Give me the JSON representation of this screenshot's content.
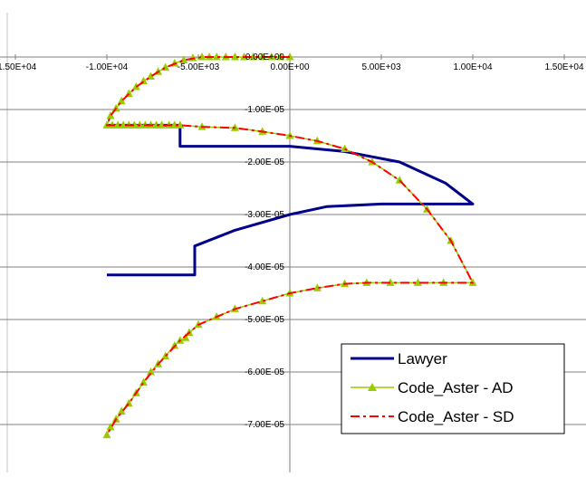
{
  "chart_data": {
    "type": "line",
    "title": "",
    "xlabel": "",
    "ylabel": "",
    "xlim": [
      -15000,
      15000
    ],
    "ylim": [
      -7.6e-05,
      1e-06
    ],
    "x_ticks": [
      {
        "value": -15000,
        "label": "-1.50E+04"
      },
      {
        "value": -10000,
        "label": "-1.00E+04"
      },
      {
        "value": -5000,
        "label": "-5.00E+03"
      },
      {
        "value": 0,
        "label": "0.00E+00"
      },
      {
        "value": 5000,
        "label": "5.00E+03"
      },
      {
        "value": 10000,
        "label": "1.00E+04"
      },
      {
        "value": 15000,
        "label": "1.50E+04"
      }
    ],
    "y_ticks": [
      {
        "value": 0,
        "label": "0.00E+00"
      },
      {
        "value": -1e-05,
        "label": "-1.00E-05"
      },
      {
        "value": -2e-05,
        "label": "-2.00E-05"
      },
      {
        "value": -3e-05,
        "label": "-3.00E-05"
      },
      {
        "value": -4e-05,
        "label": "-4.00E-05"
      },
      {
        "value": -5e-05,
        "label": "-5.00E-05"
      },
      {
        "value": -6e-05,
        "label": "-6.00E-05"
      },
      {
        "value": -7e-05,
        "label": "-7.00E-05"
      }
    ],
    "grid": "horizontal",
    "legend_position": "bottom-right",
    "series": [
      {
        "name": "Lawyer",
        "color": "#00008b",
        "style": "solid",
        "marker": "none",
        "points": [
          [
            -10000,
            -1.3e-05
          ],
          [
            -6000,
            -1.3e-05
          ],
          [
            -6000,
            -1.7e-05
          ],
          [
            0,
            -1.7e-05
          ],
          [
            3000,
            -1.8e-05
          ],
          [
            6000,
            -2e-05
          ],
          [
            8500,
            -2.4e-05
          ],
          [
            10000,
            -2.8e-05
          ],
          [
            5000,
            -2.8e-05
          ],
          [
            2000,
            -2.85e-05
          ],
          [
            0,
            -3e-05
          ],
          [
            -3000,
            -3.3e-05
          ],
          [
            -5200,
            -3.6e-05
          ],
          [
            -5200,
            -3.8e-05
          ],
          [
            -5200,
            -4.15e-05
          ],
          [
            -10000,
            -4.15e-05
          ]
        ]
      },
      {
        "name": "Code_Aster - AD",
        "color": "#99cc00",
        "style": "solid",
        "marker": "triangle",
        "points": [
          [
            0,
            0
          ],
          [
            -500,
            0
          ],
          [
            -1000,
            0
          ],
          [
            -1500,
            0
          ],
          [
            -2000,
            0
          ],
          [
            -2500,
            0
          ],
          [
            -3000,
            0
          ],
          [
            -3500,
            0
          ],
          [
            -4000,
            0
          ],
          [
            -4400,
            0
          ],
          [
            -4800,
            0
          ],
          [
            -5300,
            -2e-07
          ],
          [
            -5800,
            -6e-07
          ],
          [
            -6300,
            -1.2e-06
          ],
          [
            -6800,
            -2e-06
          ],
          [
            -7200,
            -2.8e-06
          ],
          [
            -7600,
            -3.7e-06
          ],
          [
            -8000,
            -4.6e-06
          ],
          [
            -8400,
            -5.7e-06
          ],
          [
            -8800,
            -7e-06
          ],
          [
            -9200,
            -8.4e-06
          ],
          [
            -9500,
            -9.8e-06
          ],
          [
            -9800,
            -1.12e-05
          ],
          [
            -10000,
            -1.3e-05
          ],
          [
            -9700,
            -1.3e-05
          ],
          [
            -9400,
            -1.3e-05
          ],
          [
            -9100,
            -1.3e-05
          ],
          [
            -8800,
            -1.3e-05
          ],
          [
            -8500,
            -1.3e-05
          ],
          [
            -8200,
            -1.3e-05
          ],
          [
            -7900,
            -1.3e-05
          ],
          [
            -7600,
            -1.3e-05
          ],
          [
            -7300,
            -1.3e-05
          ],
          [
            -7000,
            -1.3e-05
          ],
          [
            -6600,
            -1.3e-05
          ],
          [
            -6300,
            -1.3e-05
          ],
          [
            -6000,
            -1.3e-05
          ],
          [
            -4800,
            -1.33e-05
          ],
          [
            -3000,
            -1.35e-05
          ],
          [
            -1500,
            -1.42e-05
          ],
          [
            0,
            -1.5e-05
          ],
          [
            1500,
            -1.6e-05
          ],
          [
            3000,
            -1.75e-05
          ],
          [
            4500,
            -2e-05
          ],
          [
            6000,
            -2.35e-05
          ],
          [
            7500,
            -2.9e-05
          ],
          [
            8800,
            -3.5e-05
          ],
          [
            10000,
            -4.3e-05
          ],
          [
            8400,
            -4.3e-05
          ],
          [
            7000,
            -4.3e-05
          ],
          [
            5500,
            -4.3e-05
          ],
          [
            4200,
            -4.3e-05
          ],
          [
            3000,
            -4.32e-05
          ],
          [
            1500,
            -4.4e-05
          ],
          [
            0,
            -4.5e-05
          ],
          [
            -1500,
            -4.65e-05
          ],
          [
            -3000,
            -4.8e-05
          ],
          [
            -4000,
            -4.95e-05
          ],
          [
            -5000,
            -5.1e-05
          ],
          [
            -5500,
            -5.25e-05
          ],
          [
            -5700,
            -5.35e-05
          ],
          [
            -6000,
            -5.4e-05
          ],
          [
            -6300,
            -5.5e-05
          ],
          [
            -6800,
            -5.7e-05
          ],
          [
            -7200,
            -5.85e-05
          ],
          [
            -7600,
            -6e-05
          ],
          [
            -8000,
            -6.2e-05
          ],
          [
            -8400,
            -6.4e-05
          ],
          [
            -8800,
            -6.6e-05
          ],
          [
            -9200,
            -6.75e-05
          ],
          [
            -9500,
            -6.9e-05
          ],
          [
            -9800,
            -7.05e-05
          ],
          [
            -10000,
            -7.2e-05
          ]
        ]
      },
      {
        "name": "Code_Aster - SD",
        "color": "#ff0000",
        "style": "dash-dot",
        "marker": "none",
        "points": [
          [
            0,
            0
          ],
          [
            -3000,
            0
          ],
          [
            -4800,
            0
          ],
          [
            -5800,
            -6e-07
          ],
          [
            -6800,
            -2e-06
          ],
          [
            -7600,
            -3.7e-06
          ],
          [
            -8400,
            -5.7e-06
          ],
          [
            -9200,
            -8.4e-06
          ],
          [
            -9800,
            -1.12e-05
          ],
          [
            -10000,
            -1.3e-05
          ],
          [
            -6000,
            -1.3e-05
          ],
          [
            -4800,
            -1.33e-05
          ],
          [
            -3000,
            -1.35e-05
          ],
          [
            -1500,
            -1.42e-05
          ],
          [
            0,
            -1.5e-05
          ],
          [
            1500,
            -1.6e-05
          ],
          [
            3000,
            -1.75e-05
          ],
          [
            4500,
            -2e-05
          ],
          [
            6000,
            -2.35e-05
          ],
          [
            7500,
            -2.9e-05
          ],
          [
            8800,
            -3.5e-05
          ],
          [
            10000,
            -4.3e-05
          ],
          [
            7000,
            -4.3e-05
          ],
          [
            4200,
            -4.3e-05
          ],
          [
            3000,
            -4.32e-05
          ],
          [
            1500,
            -4.4e-05
          ],
          [
            0,
            -4.5e-05
          ],
          [
            -1500,
            -4.65e-05
          ],
          [
            -3000,
            -4.8e-05
          ],
          [
            -4000,
            -4.95e-05
          ],
          [
            -5000,
            -5.1e-05
          ],
          [
            -6000,
            -5.4e-05
          ],
          [
            -7200,
            -5.85e-05
          ],
          [
            -8000,
            -6.2e-05
          ],
          [
            -8800,
            -6.6e-05
          ],
          [
            -9500,
            -6.9e-05
          ],
          [
            -10000,
            -7.2e-05
          ]
        ]
      }
    ]
  }
}
